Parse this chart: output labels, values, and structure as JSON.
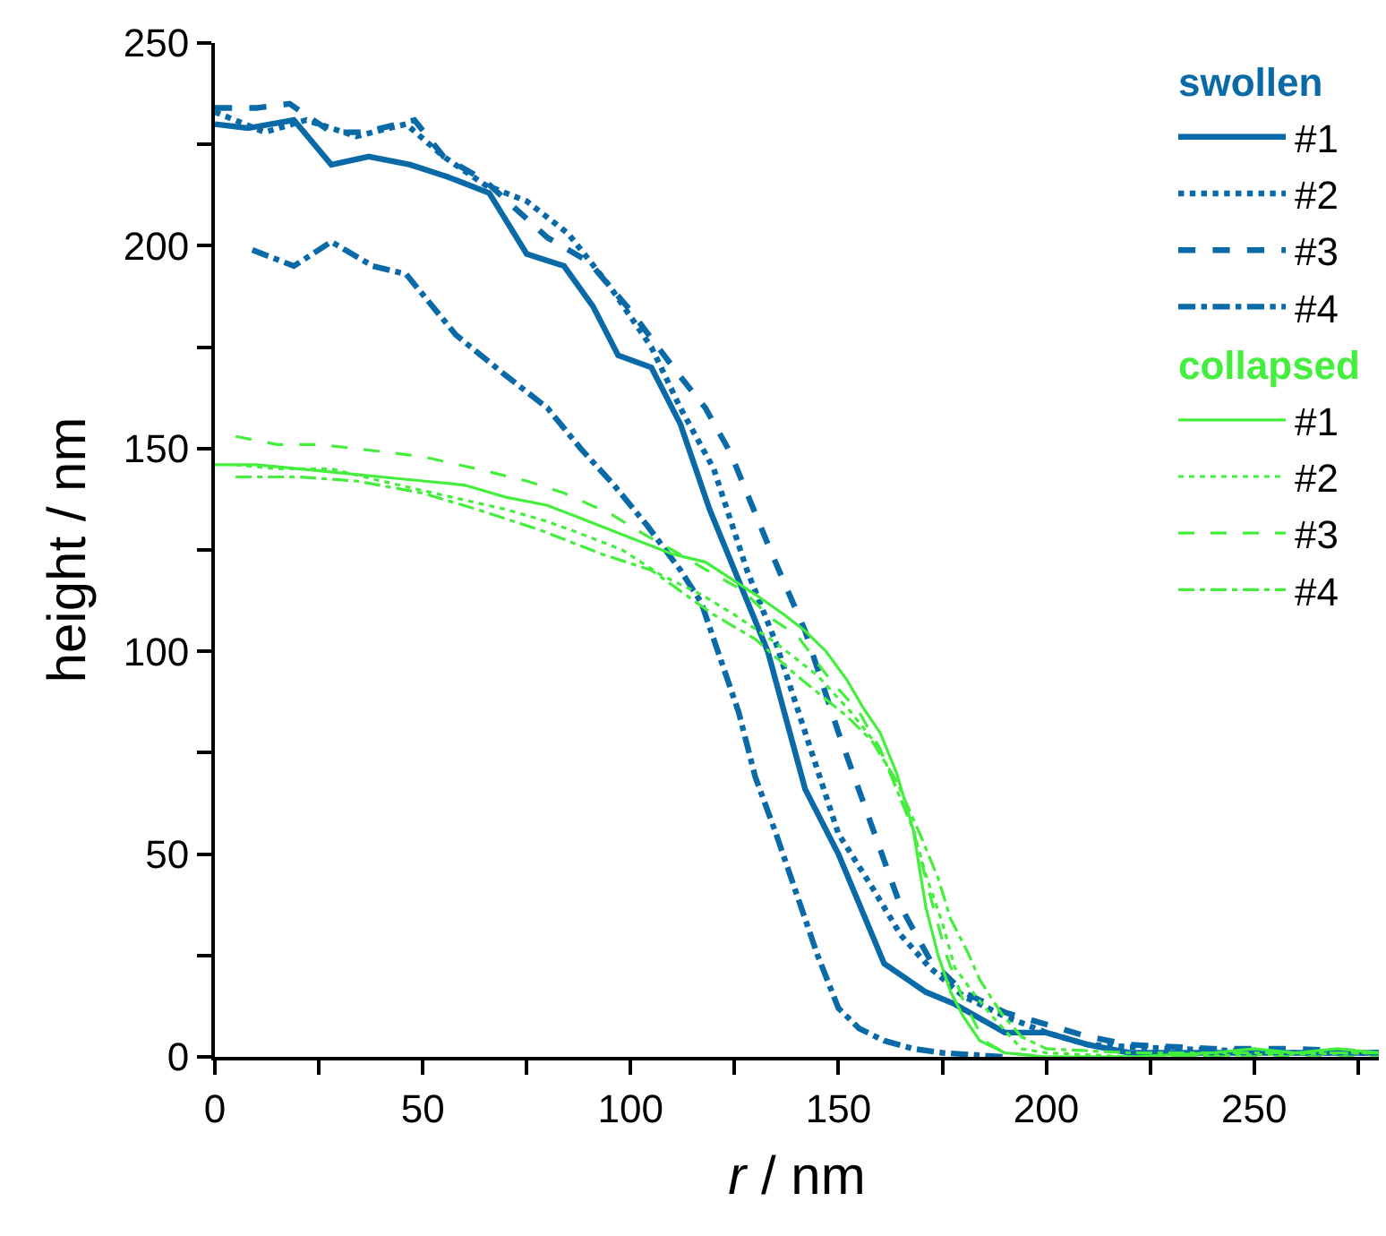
{
  "chart_data": {
    "type": "line",
    "xlabel": "r / nm",
    "ylabel": "height / nm",
    "xlim": [
      0,
      280
    ],
    "ylim": [
      0,
      250
    ],
    "xticks": [
      0,
      {
        "value": 25,
        "label": null
      },
      50,
      {
        "value": 75,
        "label": null
      },
      100,
      {
        "value": 125,
        "label": null
      },
      150,
      {
        "value": 175,
        "label": null
      },
      200,
      {
        "value": 225,
        "label": null
      },
      250,
      {
        "value": 275,
        "label": null
      }
    ],
    "yticks": [
      0,
      {
        "value": 25,
        "label": null
      },
      50,
      {
        "value": 75,
        "label": null
      },
      100,
      {
        "value": 125,
        "label": null
      },
      150,
      {
        "value": 175,
        "label": null
      },
      200,
      {
        "value": 225,
        "label": null
      },
      250
    ],
    "legend": "top right",
    "marker": "none",
    "legend_title": [
      "swollen",
      "collapsed"
    ],
    "series": [
      {
        "name": "#1",
        "color": "#0a6aa8",
        "line_style": "solid",
        "x": [
          0,
          8,
          19,
          28,
          37,
          47,
          56,
          66,
          75,
          84,
          91,
          97,
          105,
          112,
          119,
          125,
          133,
          142,
          150,
          161,
          171,
          178,
          190,
          200,
          210,
          220,
          240,
          260,
          280
        ],
        "values": [
          230,
          229,
          231,
          220,
          222,
          220,
          217,
          213,
          198,
          195,
          185,
          173,
          170,
          156,
          135,
          120,
          100,
          66,
          50,
          23,
          16,
          13,
          6,
          6,
          3,
          1,
          1,
          1,
          1
        ]
      },
      {
        "name": "#2",
        "color": "#0a6aa8",
        "line_style": "dotted",
        "x": [
          0,
          12,
          22,
          34,
          46,
          55,
          65,
          75,
          85,
          95,
          105,
          112,
          120,
          128,
          135,
          142,
          150,
          158,
          165,
          172,
          180,
          190,
          200,
          210,
          230,
          260,
          280
        ],
        "values": [
          233,
          228,
          231,
          227,
          230,
          222,
          215,
          211,
          203,
          190,
          175,
          160,
          145,
          120,
          102,
          80,
          55,
          42,
          30,
          22,
          15,
          10,
          6,
          3,
          2,
          1,
          1
        ]
      },
      {
        "name": "#3",
        "color": "#0a6aa8",
        "line_style": "dashed",
        "x": [
          0,
          10,
          18,
          28,
          36,
          48,
          55,
          65,
          80,
          90,
          100,
          111,
          118,
          124,
          134,
          142,
          150,
          158,
          165,
          172,
          180,
          190,
          200,
          210,
          220,
          240,
          260,
          280
        ],
        "values": [
          234,
          234,
          235,
          228,
          228,
          231,
          222,
          216,
          202,
          196,
          184,
          169,
          160,
          149,
          124,
          105,
          80,
          57,
          37,
          24,
          16,
          11,
          8,
          5,
          3,
          2,
          2,
          1
        ]
      },
      {
        "name": "#4",
        "color": "#0a6aa8",
        "line_style": "dashdot",
        "x": [
          9,
          19,
          28,
          38,
          46,
          58,
          70,
          80,
          88,
          96,
          104,
          112,
          117,
          121,
          126,
          130,
          135,
          140,
          145,
          150,
          155,
          161,
          168,
          175,
          190
        ],
        "values": [
          199,
          195,
          201,
          195,
          193,
          178,
          168,
          160,
          150,
          141,
          131,
          120,
          112,
          100,
          85,
          69,
          55,
          40,
          25,
          12,
          7,
          4,
          2,
          1,
          0
        ]
      },
      {
        "name": "#1",
        "color": "#44ee3c",
        "line_style": "solid",
        "x": [
          0,
          10,
          20,
          30,
          40,
          50,
          60,
          70,
          80,
          90,
          100,
          110,
          118,
          124,
          130,
          137,
          142,
          147,
          152,
          156,
          160,
          164,
          168,
          171,
          174,
          177,
          180,
          184,
          190,
          200,
          220,
          240,
          250,
          260,
          270,
          280
        ],
        "values": [
          146,
          146,
          145,
          144,
          143,
          142,
          141,
          138,
          136,
          132,
          128,
          124,
          122,
          118,
          114,
          109,
          105,
          100,
          93,
          86,
          80,
          70,
          56,
          37,
          25,
          16,
          10,
          4,
          1,
          0,
          0,
          1,
          2,
          1,
          2,
          1
        ]
      },
      {
        "name": "#2",
        "color": "#44ee3c",
        "line_style": "dotted",
        "x": [
          5,
          15,
          28,
          40,
          57,
          70,
          80,
          88,
          98,
          107,
          117,
          125,
          135,
          145,
          153,
          160,
          164,
          168,
          171,
          175,
          178,
          183,
          187,
          194,
          200,
          220,
          280
        ],
        "values": [
          146,
          145,
          145,
          142,
          138,
          135,
          132,
          129,
          125,
          119,
          114,
          109,
          102,
          94,
          85,
          76,
          66,
          56,
          45,
          33,
          22,
          15,
          10,
          2,
          1,
          0,
          1
        ]
      },
      {
        "name": "#3",
        "color": "#44ee3c",
        "line_style": "dashed",
        "x": [
          5,
          15,
          25,
          34,
          50,
          63,
          75,
          84,
          95,
          103,
          110,
          120,
          127,
          134,
          140,
          148,
          155,
          160,
          164,
          168,
          172,
          176,
          180,
          185,
          190,
          200,
          280
        ],
        "values": [
          153,
          151,
          151,
          150,
          148,
          145,
          142,
          139,
          134,
          129,
          125,
          119,
          115,
          108,
          104,
          93,
          85,
          76,
          66,
          56,
          40,
          25,
          14,
          4,
          1,
          0,
          0
        ]
      },
      {
        "name": "#4",
        "color": "#44ee3c",
        "line_style": "dashdot",
        "x": [
          5,
          20,
          34,
          50,
          63,
          78,
          93,
          105,
          120,
          130,
          140,
          146,
          152,
          158,
          164,
          170,
          174,
          177,
          181,
          184,
          189,
          194,
          200,
          220,
          280
        ],
        "values": [
          143,
          143,
          142,
          139,
          135,
          130,
          124,
          120,
          109,
          103,
          94,
          89,
          84,
          78,
          68,
          54,
          44,
          34,
          26,
          19,
          11,
          5,
          2,
          1,
          1
        ]
      }
    ]
  }
}
